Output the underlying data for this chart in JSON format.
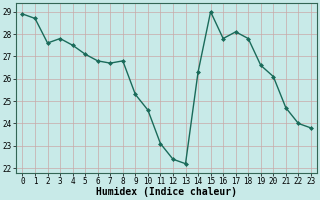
{
  "x": [
    0,
    1,
    2,
    3,
    4,
    5,
    6,
    7,
    8,
    9,
    10,
    11,
    12,
    13,
    14,
    15,
    16,
    17,
    18,
    19,
    20,
    21,
    22,
    23
  ],
  "y": [
    28.9,
    28.7,
    27.6,
    27.8,
    27.5,
    27.1,
    26.8,
    26.7,
    26.8,
    25.3,
    24.6,
    23.1,
    22.4,
    22.2,
    26.3,
    29.0,
    27.8,
    28.1,
    27.8,
    26.6,
    26.1,
    24.7,
    24.0,
    23.8
  ],
  "line_color": "#1a6b5a",
  "marker": "D",
  "marker_size": 2,
  "bg_color": "#c8eae8",
  "grid_color": "#c8a8a8",
  "xlabel": "Humidex (Indice chaleur)",
  "ylim": [
    21.8,
    29.4
  ],
  "xlim": [
    -0.5,
    23.5
  ],
  "yticks": [
    22,
    23,
    24,
    25,
    26,
    27,
    28,
    29
  ],
  "xticks": [
    0,
    1,
    2,
    3,
    4,
    5,
    6,
    7,
    8,
    9,
    10,
    11,
    12,
    13,
    14,
    15,
    16,
    17,
    18,
    19,
    20,
    21,
    22,
    23
  ],
  "tick_fontsize": 5.5,
  "xlabel_fontsize": 7,
  "linewidth": 1.0
}
